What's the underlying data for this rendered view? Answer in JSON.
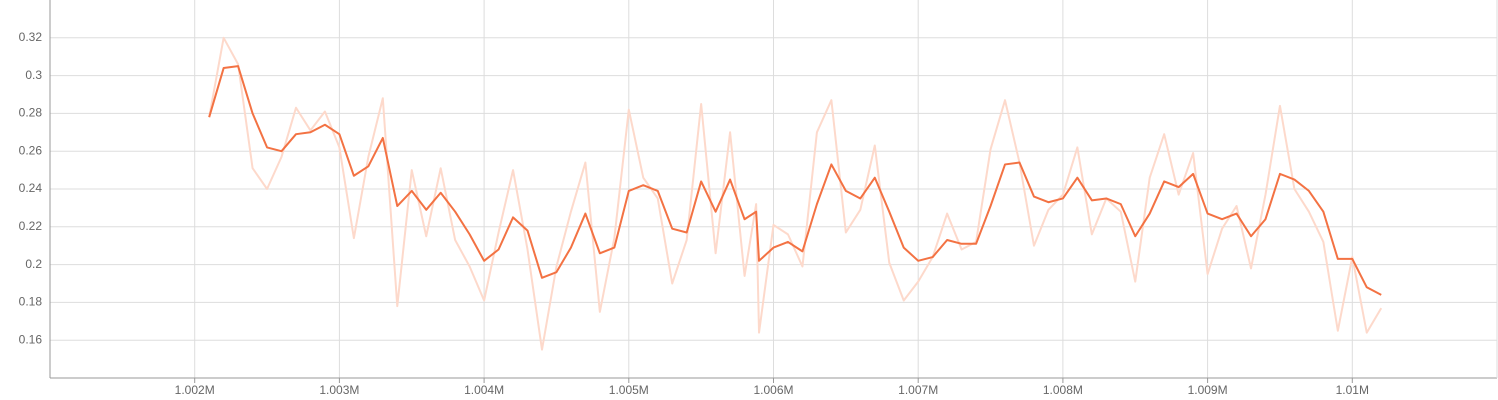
{
  "chart_data": {
    "type": "line",
    "x": [
      1002100,
      1002200,
      1002300,
      1002400,
      1002500,
      1002600,
      1002700,
      1002800,
      1002900,
      1003000,
      1003100,
      1003200,
      1003300,
      1003400,
      1003500,
      1003600,
      1003700,
      1003800,
      1003900,
      1004000,
      1004100,
      1004200,
      1004300,
      1004400,
      1004500,
      1004600,
      1004700,
      1004800,
      1004900,
      1005000,
      1005100,
      1005200,
      1005300,
      1005400,
      1005500,
      1005600,
      1005700,
      1005800,
      1005880,
      1005900,
      1006000,
      1006100,
      1006200,
      1006300,
      1006400,
      1006500,
      1006600,
      1006700,
      1006800,
      1006900,
      1007000,
      1007100,
      1007200,
      1007300,
      1007400,
      1007500,
      1007600,
      1007700,
      1007800,
      1007900,
      1008000,
      1008100,
      1008200,
      1008300,
      1008400,
      1008500,
      1008600,
      1008700,
      1008800,
      1008900,
      1009000,
      1009100,
      1009200,
      1009300,
      1009400,
      1009500,
      1009600,
      1009700,
      1009800,
      1009900,
      1010000,
      1010100,
      1010200
    ],
    "series": [
      {
        "color": "#fdd9cb",
        "values": [
          0.278,
          0.32,
          0.306,
          0.251,
          0.24,
          0.257,
          0.283,
          0.271,
          0.281,
          0.262,
          0.214,
          0.257,
          0.288,
          0.178,
          0.25,
          0.215,
          0.251,
          0.213,
          0.199,
          0.181,
          0.217,
          0.25,
          0.208,
          0.155,
          0.199,
          0.228,
          0.254,
          0.175,
          0.214,
          0.282,
          0.246,
          0.235,
          0.19,
          0.213,
          0.285,
          0.206,
          0.27,
          0.194,
          0.232,
          0.164,
          0.221,
          0.216,
          0.199,
          0.27,
          0.287,
          0.217,
          0.229,
          0.263,
          0.201,
          0.181,
          0.191,
          0.204,
          0.227,
          0.208,
          0.212,
          0.261,
          0.287,
          0.254,
          0.21,
          0.229,
          0.237,
          0.262,
          0.216,
          0.235,
          0.228,
          0.191,
          0.246,
          0.269,
          0.237,
          0.259,
          0.195,
          0.219,
          0.231,
          0.198,
          0.237,
          0.284,
          0.24,
          0.228,
          0.212,
          0.165,
          0.204,
          0.164,
          0.177
        ]
      },
      {
        "color": "#f37243",
        "values": [
          0.278,
          0.304,
          0.305,
          0.28,
          0.262,
          0.26,
          0.269,
          0.27,
          0.274,
          0.269,
          0.247,
          0.252,
          0.267,
          0.231,
          0.239,
          0.229,
          0.238,
          0.228,
          0.216,
          0.202,
          0.208,
          0.225,
          0.218,
          0.193,
          0.196,
          0.209,
          0.227,
          0.206,
          0.209,
          0.239,
          0.242,
          0.239,
          0.219,
          0.217,
          0.244,
          0.228,
          0.245,
          0.224,
          0.228,
          0.202,
          0.209,
          0.212,
          0.207,
          0.232,
          0.253,
          0.239,
          0.235,
          0.246,
          0.228,
          0.209,
          0.202,
          0.204,
          0.213,
          0.211,
          0.211,
          0.231,
          0.253,
          0.254,
          0.236,
          0.233,
          0.235,
          0.246,
          0.234,
          0.235,
          0.232,
          0.215,
          0.227,
          0.244,
          0.241,
          0.248,
          0.227,
          0.224,
          0.227,
          0.215,
          0.224,
          0.248,
          0.245,
          0.239,
          0.228,
          0.203,
          0.203,
          0.188,
          0.184
        ]
      }
    ],
    "xlim": [
      1001000,
      1011000
    ],
    "xticks": [
      {
        "value": 1002000,
        "label": "1.002M"
      },
      {
        "value": 1003000,
        "label": "1.003M"
      },
      {
        "value": 1004000,
        "label": "1.004M"
      },
      {
        "value": 1005000,
        "label": "1.005M"
      },
      {
        "value": 1006000,
        "label": "1.006M"
      },
      {
        "value": 1007000,
        "label": "1.007M"
      },
      {
        "value": 1008000,
        "label": "1.008M"
      },
      {
        "value": 1009000,
        "label": "1.009M"
      },
      {
        "value": 1010000,
        "label": "1.01M"
      }
    ],
    "ylim": [
      0.14,
      0.34
    ],
    "yticks": [
      0.16,
      0.18,
      0.2,
      0.22,
      0.24,
      0.26,
      0.28,
      0.3,
      0.32
    ],
    "grid": true
  }
}
